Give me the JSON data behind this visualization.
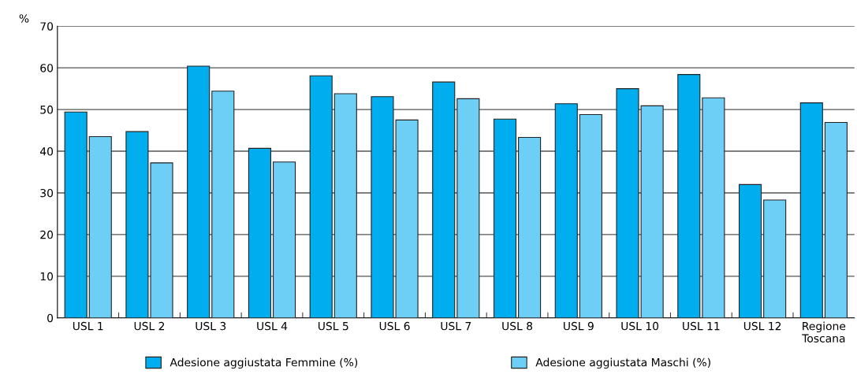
{
  "chart_data": {
    "type": "bar",
    "ylabel": "%",
    "categories": [
      "USL 1",
      "USL 2",
      "USL 3",
      "USL 4",
      "USL 5",
      "USL 6",
      "USL 7",
      "USL 8",
      "USL 9",
      "USL 10",
      "USL 11",
      "USL 12",
      "Regione\nToscana"
    ],
    "series": [
      {
        "name": "Adesione aggiustata Femmine (%)",
        "color": "#00aeef",
        "values": [
          49.4,
          44.7,
          60.4,
          40.7,
          58.1,
          53.1,
          56.6,
          47.7,
          51.4,
          55.0,
          58.4,
          32.0,
          51.6
        ]
      },
      {
        "name": "Adesione aggiustata Maschi (%)",
        "color": "#6dcff6",
        "values": [
          43.5,
          37.2,
          54.4,
          37.4,
          53.8,
          47.5,
          52.6,
          43.3,
          48.8,
          50.9,
          52.8,
          28.3,
          46.9
        ]
      }
    ],
    "ylim": [
      0,
      70
    ],
    "yticks": [
      0,
      10,
      20,
      30,
      40,
      50,
      60,
      70
    ],
    "grid": "y",
    "legend": "bottom"
  }
}
